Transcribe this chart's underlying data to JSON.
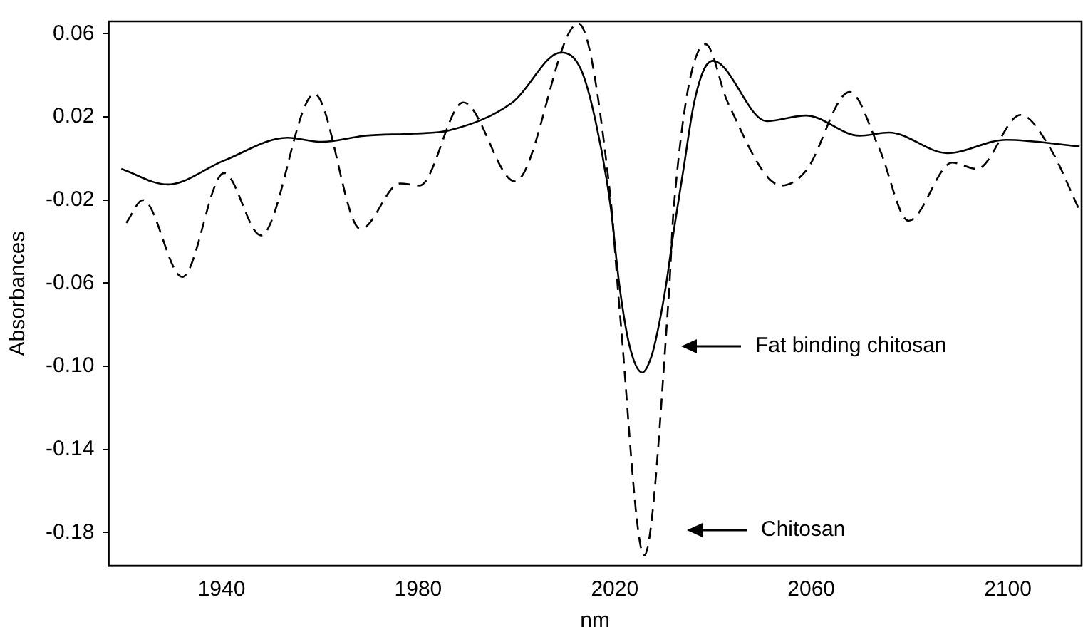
{
  "chart_data": {
    "type": "line",
    "xlabel": "nm",
    "ylabel": "Absorbances",
    "xlim": [
      1917,
      2115
    ],
    "ylim": [
      -0.196,
      0.066
    ],
    "xticks": [
      1940,
      1980,
      2020,
      2060,
      2100
    ],
    "yticks": [
      {
        "value": 0.06,
        "label": "0.06"
      },
      {
        "value": 0.02,
        "label": "0.02"
      },
      {
        "value": -0.02,
        "label": "-0.02"
      },
      {
        "value": -0.06,
        "label": "-0.06"
      },
      {
        "value": -0.1,
        "label": "-0.10"
      },
      {
        "value": -0.14,
        "label": "-0.14"
      },
      {
        "value": -0.18,
        "label": "-0.18"
      }
    ],
    "grid": false,
    "legend": false,
    "marker": "none",
    "series": [
      {
        "color": "#000000",
        "line_style": "solid",
        "x": [
          1919.6,
          1929,
          1940.5,
          1953.4,
          1960.4,
          1969.3,
          1979.3,
          1986.3,
          1999.2,
          2009.1,
          2013.1,
          2016.1,
          2019.1,
          2021,
          2023,
          2025.6,
          2027.5,
          2029,
          2030.5,
          2032,
          2034,
          2036,
          2038,
          2040,
          2050.9,
          2058.9,
          2069.8,
          2075.8,
          2087.7,
          2099.7,
          2114.6
        ],
        "values": [
          -0.005,
          -0.0125,
          -0.001,
          0.01,
          0.008,
          0.011,
          0.012,
          0.0135,
          0.027,
          0.051,
          0.043,
          0.018,
          -0.022,
          -0.062,
          -0.09,
          -0.103,
          -0.095,
          -0.08,
          -0.06,
          -0.035,
          -0.005,
          0.025,
          0.042,
          0.047,
          0.018,
          0.0207,
          0.011,
          0.0125,
          0.0026,
          0.009,
          0.0058
        ]
      },
      {
        "color": "#000000",
        "line_style": "dashed",
        "x": [
          1920.6,
          1924,
          1932,
          1940.5,
          1948,
          1958.9,
          1968.3,
          1976.3,
          1980.3,
          1989.2,
          1999.7,
          2012.6,
          2019.1,
          2021,
          2026,
          2031,
          2032,
          2038.5,
          2043,
          2054,
          2058.9,
          2067.8,
          2073.8,
          2079.8,
          2088.7,
          2093.7,
          2102.6,
          2108.6,
          2114.6
        ],
        "values": [
          -0.031,
          -0.02,
          -0.057,
          -0.007,
          -0.037,
          0.031,
          -0.034,
          -0.012,
          -0.013,
          0.027,
          -0.011,
          0.065,
          -0.018,
          -0.073,
          -0.191,
          -0.066,
          -0.024,
          0.055,
          0.027,
          -0.013,
          -0.006,
          0.032,
          0.005,
          -0.03,
          -0.002,
          -0.005,
          0.021,
          0.005,
          -0.025
        ]
      }
    ],
    "annotations": [
      "Fat binding chitosan",
      "Chitosan"
    ]
  }
}
